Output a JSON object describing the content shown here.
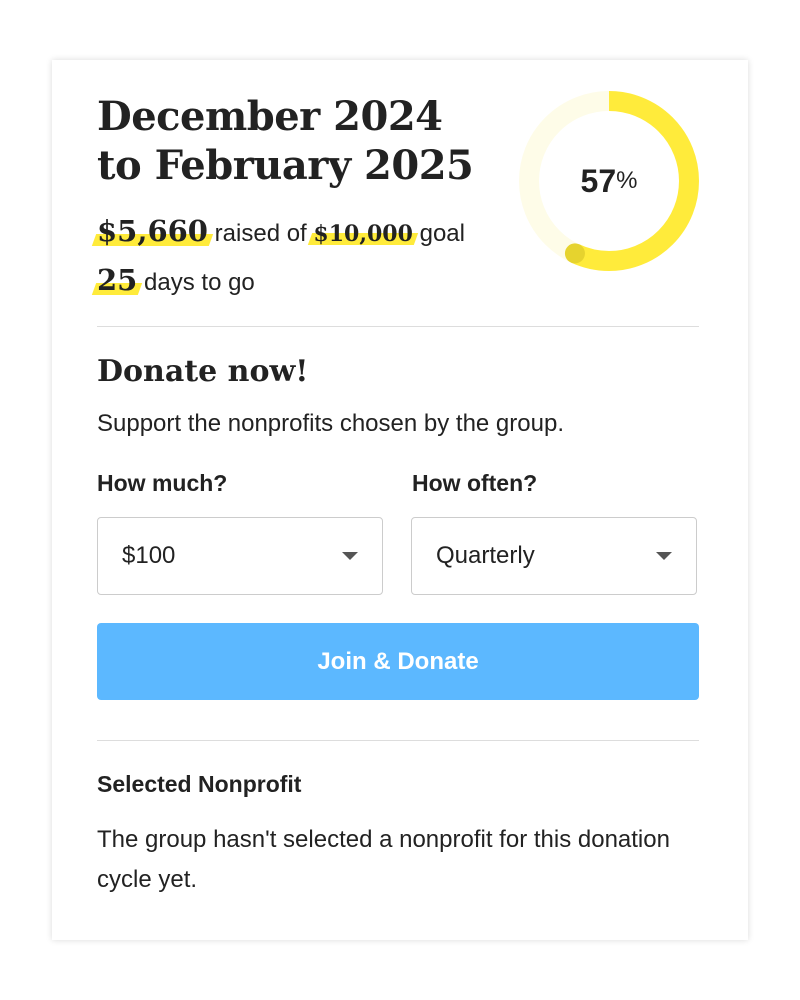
{
  "campaign": {
    "title_line1": "December 2024",
    "title_line2": "to February 2025",
    "raised": "$5,660",
    "raised_text": "raised of",
    "goal": "$10,000",
    "goal_text": "goal",
    "days": "25",
    "days_text": "days to go",
    "progress_percent": 57,
    "progress_number": "57",
    "progress_symbol": "%",
    "colors": {
      "accent": "#ffeb3b",
      "track": "#fefce8",
      "knob": "#e6d32e",
      "button": "#5cb8ff"
    }
  },
  "donate": {
    "heading": "Donate now!",
    "subtitle": "Support the nonprofits chosen by the group.",
    "amount_label": "How much?",
    "amount_value": "$100",
    "frequency_label": "How often?",
    "frequency_value": "Quarterly",
    "button_label": "Join & Donate"
  },
  "nonprofit": {
    "heading": "Selected Nonprofit",
    "message": "The group hasn't selected a nonprofit for this donation cycle yet."
  }
}
